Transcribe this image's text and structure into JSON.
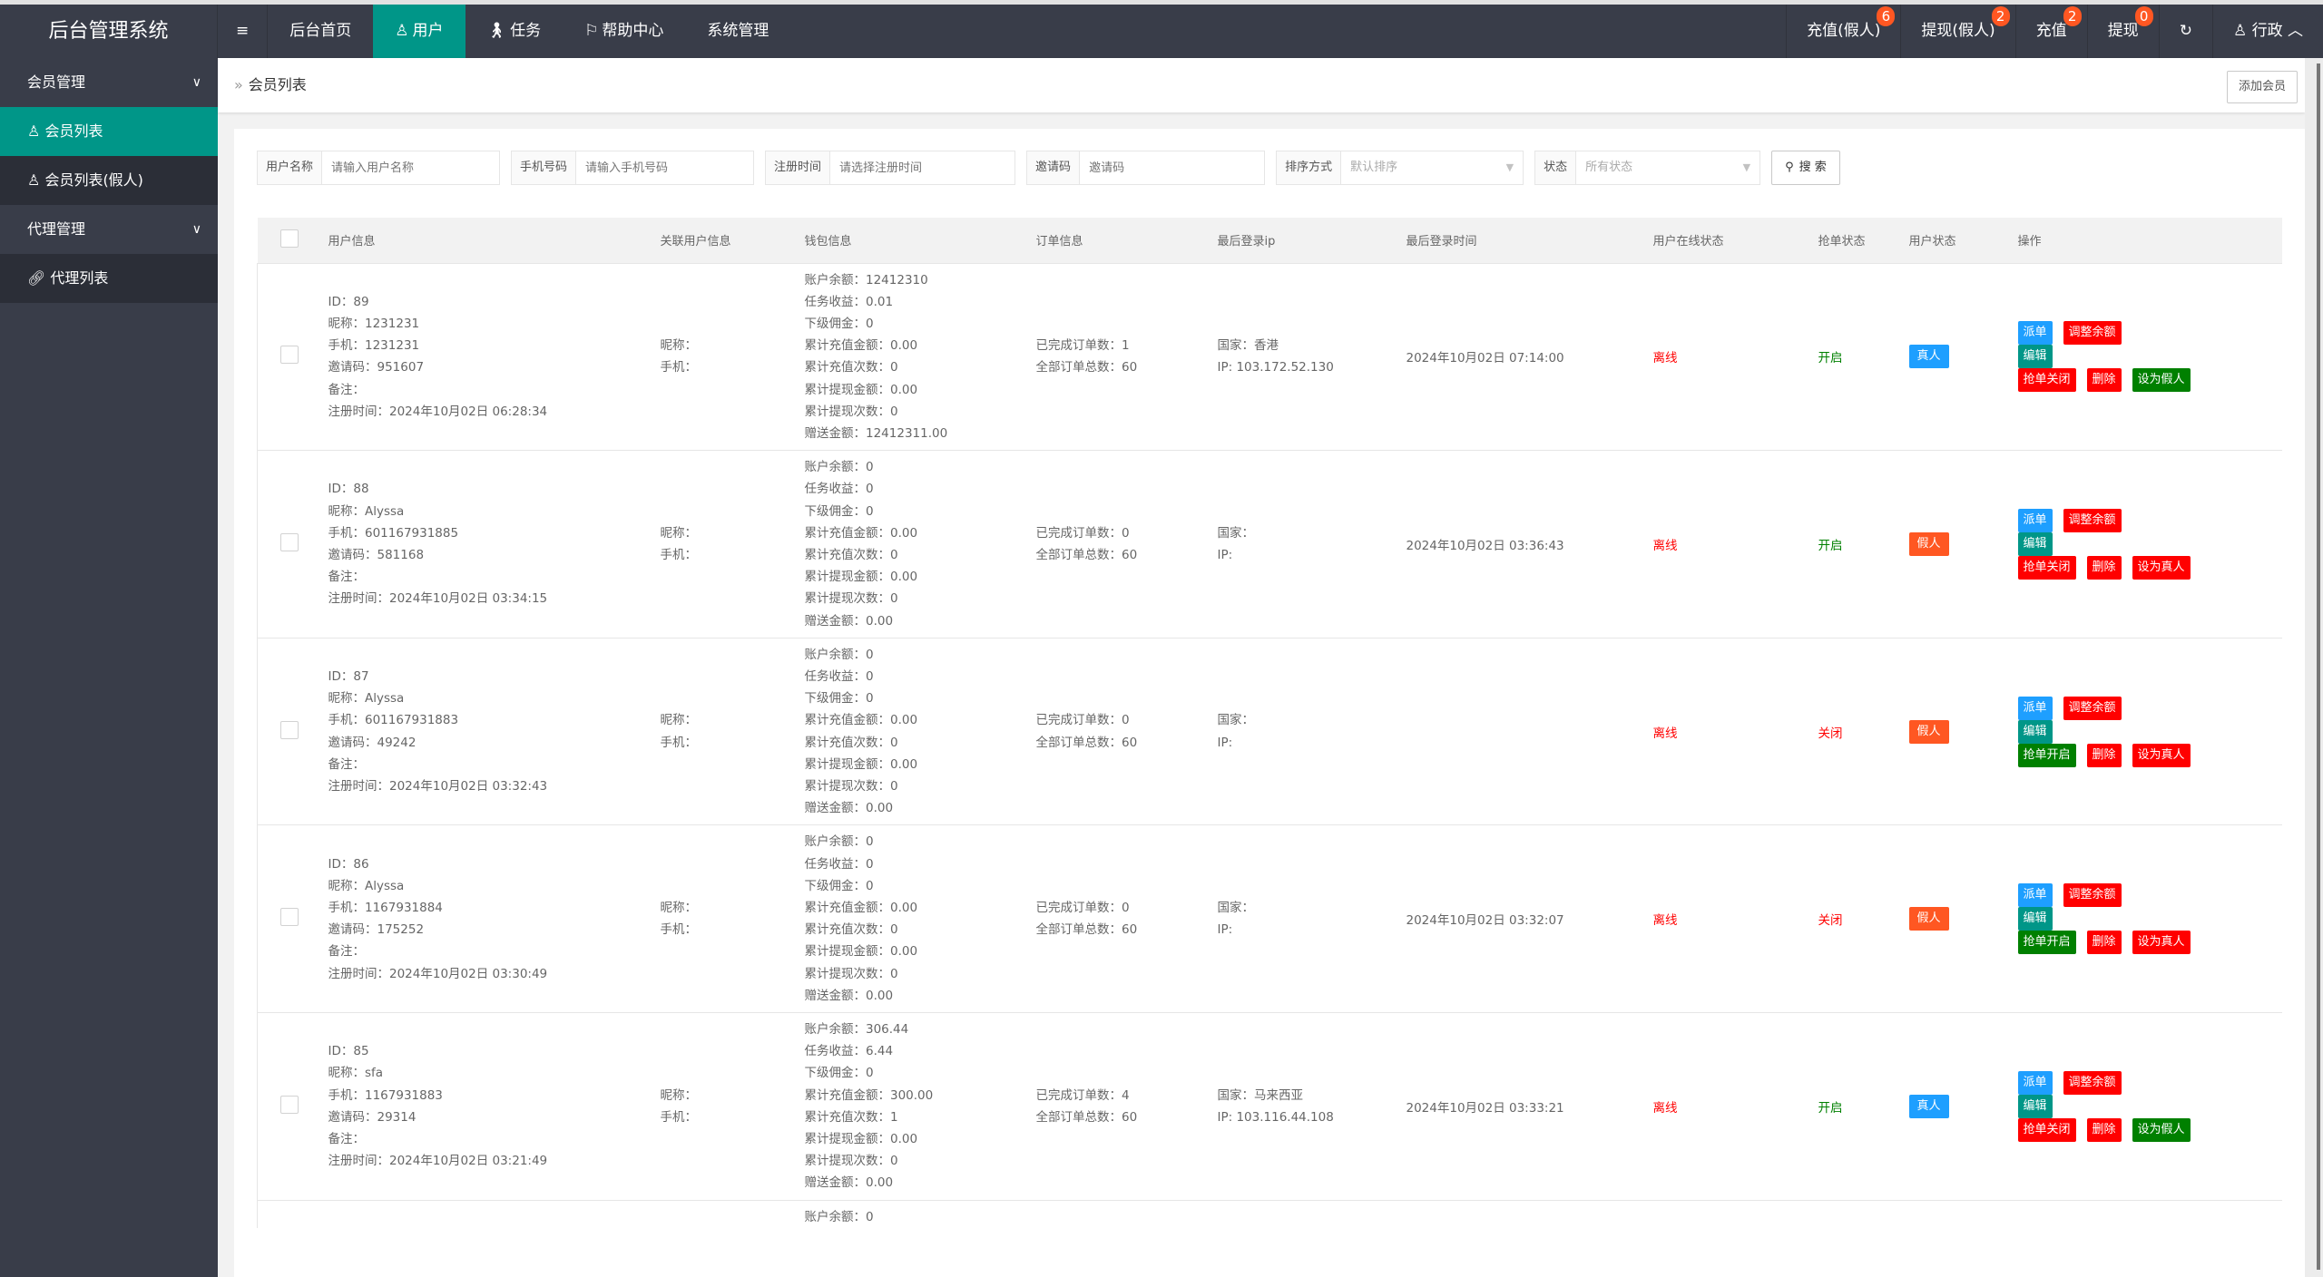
{
  "header": {
    "logo": "后台管理系统",
    "menu_toggle_icon": "≡",
    "nav": [
      {
        "label": "后台首页",
        "icon": ""
      },
      {
        "label": "用户",
        "icon": "user-icon",
        "active": true
      },
      {
        "label": "任务",
        "icon": "walk-icon"
      },
      {
        "label": "帮助中心",
        "icon": "flag-icon"
      },
      {
        "label": "系统管理",
        "icon": ""
      }
    ],
    "right": [
      {
        "label": "充值(假人)",
        "badge": "6"
      },
      {
        "label": "提现(假人)",
        "badge": "2"
      },
      {
        "label": "充值",
        "badge": "2"
      },
      {
        "label": "提现",
        "badge": "0"
      }
    ],
    "refresh_icon": "↻",
    "user": "行政"
  },
  "sidebar": {
    "groups": [
      {
        "label": "会员管理",
        "items": [
          {
            "label": "会员列表",
            "icon": "user-icon",
            "active": true
          },
          {
            "label": "会员列表(假人)",
            "icon": "user-icon"
          }
        ]
      },
      {
        "label": "代理管理",
        "items": [
          {
            "label": "代理列表",
            "icon": "link-icon"
          }
        ]
      }
    ]
  },
  "breadcrumb": {
    "sep": "»",
    "current": "会员列表"
  },
  "add_button": "添加会员",
  "filters": {
    "username": {
      "label": "用户名称",
      "placeholder": "请输入用户名称"
    },
    "phone": {
      "label": "手机号码",
      "placeholder": "请输入手机号码"
    },
    "regtime": {
      "label": "注册时间",
      "placeholder": "请选择注册时间"
    },
    "invite": {
      "label": "邀请码",
      "placeholder": "邀请码"
    },
    "sort": {
      "label": "排序方式",
      "value": "默认排序"
    },
    "status": {
      "label": "状态",
      "value": "所有状态"
    },
    "search": "搜 索"
  },
  "columns": [
    "用户信息",
    "关联用户信息",
    "钱包信息",
    "订单信息",
    "最后登录ip",
    "最后登录时间",
    "用户在线状态",
    "抢单状态",
    "用户状态",
    "操作"
  ],
  "colors": {
    "teal": "#009688",
    "dark": "#393d49",
    "blue": "#1e9fff",
    "red": "#ff0000",
    "green": "#008000",
    "orange": "#ff5722"
  },
  "rows": [
    {
      "user": [
        "ID：89",
        "昵称：1231231",
        "手机：1231231",
        "邀请码：951607",
        "备注：",
        "注册时间：2024年10月02日 06:28:34"
      ],
      "rel": [
        "昵称：",
        "手机："
      ],
      "wallet": [
        "账户余额：12412310",
        "任务收益：0.01",
        "下级佣金：0",
        "累计充值金额：0.00",
        "累计充值次数：0",
        "累计提现金额：0.00",
        "累计提现次数：0",
        "赠送金额：12412311.00"
      ],
      "order": [
        "已完成订单数：1",
        "全部订单总数：60"
      ],
      "ip": [
        "国家：香港",
        "IP: 103.172.52.130"
      ],
      "last": "2024年10月02日 07:14:00",
      "online": "离线",
      "grab": "开启",
      "grab_on": true,
      "ustatus": "真人",
      "real": true,
      "ops": {
        "dispatch": "派单",
        "adjust": "调整余额",
        "edit": "编辑",
        "grab": "抢单关闭",
        "del": "删除",
        "toggle": "设为假人"
      }
    },
    {
      "user": [
        "ID：88",
        "昵称：Alyssa",
        "手机：601167931885",
        "邀请码：581168",
        "备注：",
        "注册时间：2024年10月02日 03:34:15"
      ],
      "rel": [
        "昵称：",
        "手机："
      ],
      "wallet": [
        "账户余额：0",
        "任务收益：0",
        "下级佣金：0",
        "累计充值金额：0.00",
        "累计充值次数：0",
        "累计提现金额：0.00",
        "累计提现次数：0",
        "赠送金额：0.00"
      ],
      "order": [
        "已完成订单数：0",
        "全部订单总数：60"
      ],
      "ip": [
        "国家：",
        "IP:"
      ],
      "last": "2024年10月02日 03:36:43",
      "online": "离线",
      "grab": "开启",
      "grab_on": true,
      "ustatus": "假人",
      "real": false,
      "ops": {
        "dispatch": "派单",
        "adjust": "调整余额",
        "edit": "编辑",
        "grab": "抢单关闭",
        "del": "删除",
        "toggle": "设为真人"
      }
    },
    {
      "user": [
        "ID：87",
        "昵称：Alyssa",
        "手机：601167931883",
        "邀请码：49242",
        "备注：",
        "注册时间：2024年10月02日 03:32:43"
      ],
      "rel": [
        "昵称：",
        "手机："
      ],
      "wallet": [
        "账户余额：0",
        "任务收益：0",
        "下级佣金：0",
        "累计充值金额：0.00",
        "累计充值次数：0",
        "累计提现金额：0.00",
        "累计提现次数：0",
        "赠送金额：0.00"
      ],
      "order": [
        "已完成订单数：0",
        "全部订单总数：60"
      ],
      "ip": [
        "国家：",
        "IP:"
      ],
      "last": "",
      "online": "离线",
      "grab": "关闭",
      "grab_on": false,
      "ustatus": "假人",
      "real": false,
      "ops": {
        "dispatch": "派单",
        "adjust": "调整余额",
        "edit": "编辑",
        "grab": "抢单开启",
        "del": "删除",
        "toggle": "设为真人"
      }
    },
    {
      "user": [
        "ID：86",
        "昵称：Alyssa",
        "手机：1167931884",
        "邀请码：175252",
        "备注：",
        "注册时间：2024年10月02日 03:30:49"
      ],
      "rel": [
        "昵称：",
        "手机："
      ],
      "wallet": [
        "账户余额：0",
        "任务收益：0",
        "下级佣金：0",
        "累计充值金额：0.00",
        "累计充值次数：0",
        "累计提现金额：0.00",
        "累计提现次数：0",
        "赠送金额：0.00"
      ],
      "order": [
        "已完成订单数：0",
        "全部订单总数：60"
      ],
      "ip": [
        "国家：",
        "IP:"
      ],
      "last": "2024年10月02日 03:32:07",
      "online": "离线",
      "grab": "关闭",
      "grab_on": false,
      "ustatus": "假人",
      "real": false,
      "ops": {
        "dispatch": "派单",
        "adjust": "调整余额",
        "edit": "编辑",
        "grab": "抢单开启",
        "del": "删除",
        "toggle": "设为真人"
      }
    },
    {
      "user": [
        "ID：85",
        "昵称：sfa",
        "手机：1167931883",
        "邀请码：29314",
        "备注：",
        "注册时间：2024年10月02日 03:21:49"
      ],
      "rel": [
        "昵称：",
        "手机："
      ],
      "wallet": [
        "账户余额：306.44",
        "任务收益：6.44",
        "下级佣金：0",
        "累计充值金额：300.00",
        "累计充值次数：1",
        "累计提现金额：0.00",
        "累计提现次数：0",
        "赠送金额：0.00"
      ],
      "order": [
        "已完成订单数：4",
        "全部订单总数：60"
      ],
      "ip": [
        "国家：马来西亚",
        "IP: 103.116.44.108"
      ],
      "last": "2024年10月02日 03:33:21",
      "online": "离线",
      "grab": "开启",
      "grab_on": true,
      "ustatus": "真人",
      "real": true,
      "ops": {
        "dispatch": "派单",
        "adjust": "调整余额",
        "edit": "编辑",
        "grab": "抢单关闭",
        "del": "删除",
        "toggle": "设为假人"
      }
    }
  ],
  "partial_row": {
    "wallet_first": "账户余额：0"
  }
}
